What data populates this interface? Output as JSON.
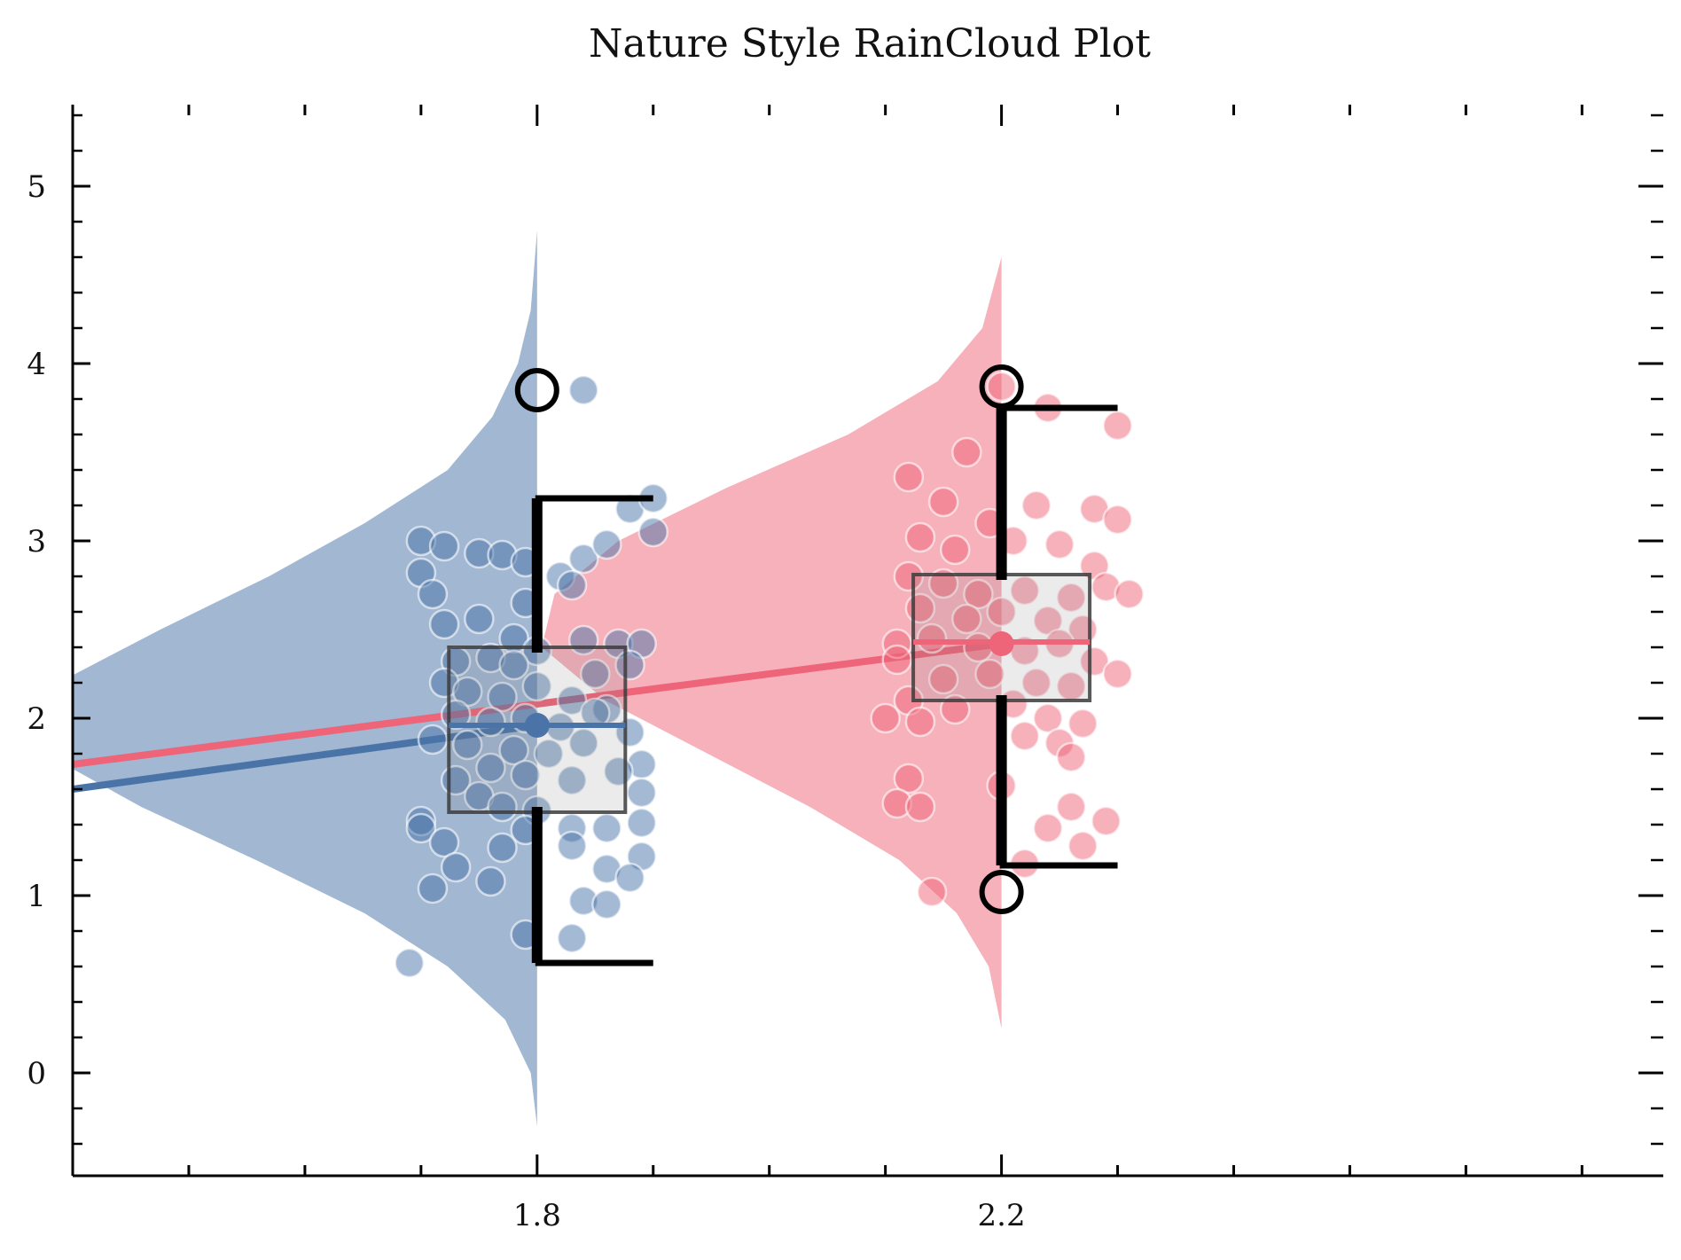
{
  "chart_data": {
    "type": "raincloud",
    "title": "Nature Style RainCloud Plot",
    "xlabel": "",
    "ylabel": "",
    "xlim": [
      1.4,
      2.77
    ],
    "ylim": [
      -0.58,
      5.46
    ],
    "x_ticks": [
      1.8,
      2.2
    ],
    "x_tick_labels": [
      "1.8",
      "2.2"
    ],
    "y_ticks": [
      0,
      1,
      2,
      3,
      4,
      5
    ],
    "y_tick_labels": [
      "0",
      "1",
      "2",
      "3",
      "4",
      "5"
    ],
    "grid": false,
    "legend": "none",
    "colors": {
      "group_a": "#4a74a8",
      "group_b": "#ee6478",
      "box_edge": "#3c3c3c",
      "whisker": "#000000"
    },
    "series": [
      {
        "x": 1.8,
        "color": "#4a74a8",
        "box": {
          "q1": 1.47,
          "median": 1.96,
          "q3": 2.4,
          "whisker_low": 0.62,
          "whisker_high": 3.24,
          "mean": 1.96
        },
        "outliers": [
          3.85
        ],
        "density": {
          "y": [
            -0.3,
            0.0,
            0.3,
            0.6,
            0.9,
            1.2,
            1.5,
            1.8,
            2.0,
            2.2,
            2.5,
            2.8,
            3.1,
            3.4,
            3.7,
            4.0,
            4.3,
            4.75
          ],
          "width": [
            0.0,
            0.01,
            0.05,
            0.14,
            0.27,
            0.44,
            0.62,
            0.77,
            0.8,
            0.75,
            0.59,
            0.42,
            0.27,
            0.14,
            0.07,
            0.03,
            0.01,
            0.0
          ]
        },
        "points": [
          {
            "x": 1.7,
            "y": 3.0
          },
          {
            "x": 1.72,
            "y": 2.97
          },
          {
            "x": 1.7,
            "y": 2.82
          },
          {
            "x": 1.75,
            "y": 2.93
          },
          {
            "x": 1.77,
            "y": 2.92
          },
          {
            "x": 1.79,
            "y": 2.88
          },
          {
            "x": 1.82,
            "y": 2.8
          },
          {
            "x": 1.84,
            "y": 2.9
          },
          {
            "x": 1.86,
            "y": 2.98
          },
          {
            "x": 1.88,
            "y": 3.18
          },
          {
            "x": 1.9,
            "y": 3.24
          },
          {
            "x": 1.9,
            "y": 3.05
          },
          {
            "x": 1.79,
            "y": 2.65
          },
          {
            "x": 1.83,
            "y": 2.75
          },
          {
            "x": 1.71,
            "y": 2.7
          },
          {
            "x": 1.72,
            "y": 2.53
          },
          {
            "x": 1.75,
            "y": 2.56
          },
          {
            "x": 1.78,
            "y": 2.45
          },
          {
            "x": 1.8,
            "y": 2.38
          },
          {
            "x": 1.84,
            "y": 2.44
          },
          {
            "x": 1.87,
            "y": 2.42
          },
          {
            "x": 1.89,
            "y": 2.42
          },
          {
            "x": 1.73,
            "y": 2.32
          },
          {
            "x": 1.76,
            "y": 2.34
          },
          {
            "x": 1.78,
            "y": 2.3
          },
          {
            "x": 1.85,
            "y": 2.25
          },
          {
            "x": 1.88,
            "y": 2.3
          },
          {
            "x": 1.72,
            "y": 2.2
          },
          {
            "x": 1.74,
            "y": 2.15
          },
          {
            "x": 1.77,
            "y": 2.12
          },
          {
            "x": 1.8,
            "y": 2.18
          },
          {
            "x": 1.83,
            "y": 2.1
          },
          {
            "x": 1.86,
            "y": 2.05
          },
          {
            "x": 1.73,
            "y": 2.02
          },
          {
            "x": 1.76,
            "y": 1.98
          },
          {
            "x": 1.79,
            "y": 2.0
          },
          {
            "x": 1.82,
            "y": 1.95
          },
          {
            "x": 1.85,
            "y": 2.03
          },
          {
            "x": 1.88,
            "y": 1.92
          },
          {
            "x": 1.71,
            "y": 1.88
          },
          {
            "x": 1.74,
            "y": 1.85
          },
          {
            "x": 1.78,
            "y": 1.82
          },
          {
            "x": 1.81,
            "y": 1.8
          },
          {
            "x": 1.84,
            "y": 1.86
          },
          {
            "x": 1.89,
            "y": 1.74
          },
          {
            "x": 1.73,
            "y": 1.65
          },
          {
            "x": 1.76,
            "y": 1.72
          },
          {
            "x": 1.79,
            "y": 1.68
          },
          {
            "x": 1.83,
            "y": 1.65
          },
          {
            "x": 1.87,
            "y": 1.7
          },
          {
            "x": 1.89,
            "y": 1.58
          },
          {
            "x": 1.75,
            "y": 1.56
          },
          {
            "x": 1.77,
            "y": 1.5
          },
          {
            "x": 1.8,
            "y": 1.48
          },
          {
            "x": 1.7,
            "y": 1.42
          },
          {
            "x": 1.7,
            "y": 1.38
          },
          {
            "x": 1.79,
            "y": 1.37
          },
          {
            "x": 1.83,
            "y": 1.38
          },
          {
            "x": 1.86,
            "y": 1.38
          },
          {
            "x": 1.89,
            "y": 1.41
          },
          {
            "x": 1.72,
            "y": 1.3
          },
          {
            "x": 1.77,
            "y": 1.27
          },
          {
            "x": 1.83,
            "y": 1.28
          },
          {
            "x": 1.89,
            "y": 1.22
          },
          {
            "x": 1.73,
            "y": 1.16
          },
          {
            "x": 1.86,
            "y": 1.15
          },
          {
            "x": 1.88,
            "y": 1.1
          },
          {
            "x": 1.71,
            "y": 1.04
          },
          {
            "x": 1.76,
            "y": 1.08
          },
          {
            "x": 1.84,
            "y": 0.97
          },
          {
            "x": 1.86,
            "y": 0.95
          },
          {
            "x": 1.79,
            "y": 0.78
          },
          {
            "x": 1.83,
            "y": 0.76
          },
          {
            "x": 1.69,
            "y": 0.62
          },
          {
            "x": 1.84,
            "y": 3.85
          }
        ]
      },
      {
        "x": 2.2,
        "color": "#ee6478",
        "box": {
          "q1": 2.1,
          "median": 2.43,
          "q3": 2.81,
          "whisker_low": 1.17,
          "whisker_high": 3.75,
          "mean": 2.42
        },
        "outliers": [
          3.87,
          1.02
        ],
        "density": {
          "y": [
            0.25,
            0.6,
            0.9,
            1.2,
            1.5,
            1.8,
            2.1,
            2.4,
            2.7,
            3.0,
            3.3,
            3.6,
            3.9,
            4.2,
            4.6
          ],
          "width": [
            0.0,
            0.02,
            0.07,
            0.16,
            0.3,
            0.46,
            0.62,
            0.72,
            0.7,
            0.6,
            0.43,
            0.24,
            0.1,
            0.03,
            0.0
          ]
        },
        "points": [
          {
            "x": 2.12,
            "y": 3.36
          },
          {
            "x": 2.15,
            "y": 3.22
          },
          {
            "x": 2.17,
            "y": 3.5
          },
          {
            "x": 2.19,
            "y": 3.1
          },
          {
            "x": 2.2,
            "y": 3.87
          },
          {
            "x": 2.24,
            "y": 3.75
          },
          {
            "x": 2.3,
            "y": 3.65
          },
          {
            "x": 2.23,
            "y": 3.2
          },
          {
            "x": 2.28,
            "y": 3.18
          },
          {
            "x": 2.3,
            "y": 3.12
          },
          {
            "x": 2.13,
            "y": 3.02
          },
          {
            "x": 2.16,
            "y": 2.95
          },
          {
            "x": 2.21,
            "y": 3.0
          },
          {
            "x": 2.25,
            "y": 2.98
          },
          {
            "x": 2.28,
            "y": 2.86
          },
          {
            "x": 2.12,
            "y": 2.8
          },
          {
            "x": 2.15,
            "y": 2.76
          },
          {
            "x": 2.18,
            "y": 2.7
          },
          {
            "x": 2.22,
            "y": 2.72
          },
          {
            "x": 2.26,
            "y": 2.68
          },
          {
            "x": 2.29,
            "y": 2.74
          },
          {
            "x": 2.31,
            "y": 2.7
          },
          {
            "x": 2.13,
            "y": 2.62
          },
          {
            "x": 2.17,
            "y": 2.56
          },
          {
            "x": 2.2,
            "y": 2.6
          },
          {
            "x": 2.24,
            "y": 2.55
          },
          {
            "x": 2.27,
            "y": 2.5
          },
          {
            "x": 2.11,
            "y": 2.42
          },
          {
            "x": 2.14,
            "y": 2.45
          },
          {
            "x": 2.18,
            "y": 2.4
          },
          {
            "x": 2.22,
            "y": 2.38
          },
          {
            "x": 2.25,
            "y": 2.42
          },
          {
            "x": 2.28,
            "y": 2.32
          },
          {
            "x": 2.3,
            "y": 2.25
          },
          {
            "x": 2.11,
            "y": 2.33
          },
          {
            "x": 2.15,
            "y": 2.22
          },
          {
            "x": 2.19,
            "y": 2.25
          },
          {
            "x": 2.23,
            "y": 2.2
          },
          {
            "x": 2.26,
            "y": 2.18
          },
          {
            "x": 2.12,
            "y": 2.1
          },
          {
            "x": 2.16,
            "y": 2.05
          },
          {
            "x": 2.21,
            "y": 2.08
          },
          {
            "x": 2.24,
            "y": 2.0
          },
          {
            "x": 2.1,
            "y": 2.0
          },
          {
            "x": 2.13,
            "y": 1.98
          },
          {
            "x": 2.27,
            "y": 1.97
          },
          {
            "x": 2.22,
            "y": 1.9
          },
          {
            "x": 2.25,
            "y": 1.86
          },
          {
            "x": 2.26,
            "y": 1.78
          },
          {
            "x": 2.12,
            "y": 1.66
          },
          {
            "x": 2.2,
            "y": 1.62
          },
          {
            "x": 2.11,
            "y": 1.52
          },
          {
            "x": 2.13,
            "y": 1.5
          },
          {
            "x": 2.26,
            "y": 1.5
          },
          {
            "x": 2.29,
            "y": 1.42
          },
          {
            "x": 2.24,
            "y": 1.38
          },
          {
            "x": 2.27,
            "y": 1.28
          },
          {
            "x": 2.22,
            "y": 1.18
          },
          {
            "x": 2.14,
            "y": 1.02
          }
        ]
      }
    ],
    "trend_lines": [
      {
        "color": "#4a74a8",
        "from": [
          1.4,
          1.6
        ],
        "to": [
          1.8,
          1.96
        ]
      },
      {
        "color": "#ee6478",
        "from": [
          1.4,
          1.74
        ],
        "to": [
          2.2,
          2.42
        ]
      }
    ]
  }
}
